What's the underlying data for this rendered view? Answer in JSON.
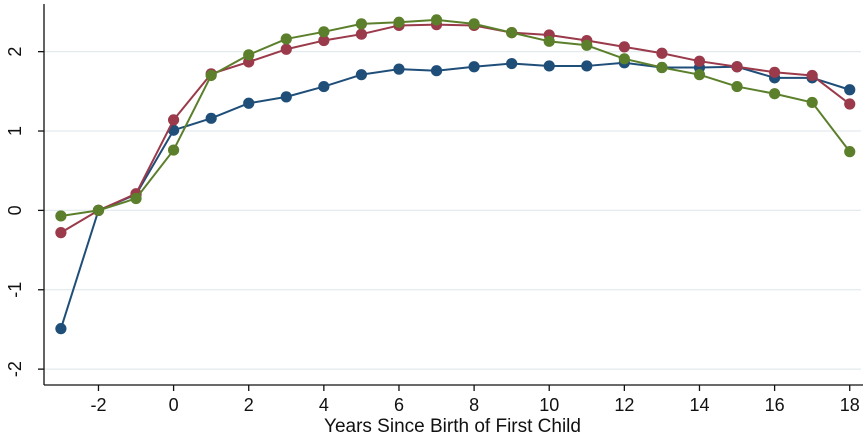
{
  "chart_data": {
    "type": "line",
    "xlabel": "Years Since Birth of First Child",
    "ylabel": "",
    "x": [
      -3,
      -2,
      -1,
      0,
      1,
      2,
      3,
      4,
      5,
      6,
      7,
      8,
      9,
      10,
      11,
      12,
      13,
      14,
      15,
      16,
      17,
      18
    ],
    "xlim": [
      -3.45,
      18.3
    ],
    "ylim": [
      -2.2,
      2.55
    ],
    "xticks": [
      -2,
      0,
      2,
      4,
      6,
      8,
      10,
      12,
      14,
      16,
      18
    ],
    "xtick_labels": [
      "-2",
      "0",
      "2",
      "4",
      "6",
      "8",
      "10",
      "12",
      "14",
      "16",
      "18"
    ],
    "yticks": [
      -2,
      -1,
      0,
      1,
      2
    ],
    "ytick_labels": [
      "-2",
      "-1",
      "0",
      "1",
      "2"
    ],
    "grid": "horizontal",
    "legend": "none",
    "series": [
      {
        "color": "#1f4e79",
        "values": [
          -1.49,
          0.0,
          0.2,
          1.01,
          1.16,
          1.35,
          1.43,
          1.56,
          1.71,
          1.78,
          1.76,
          1.81,
          1.85,
          1.82,
          1.82,
          1.86,
          1.8,
          1.8,
          1.81,
          1.67,
          1.67,
          1.52
        ]
      },
      {
        "color": "#9a3a4a",
        "values": [
          -0.28,
          0.0,
          0.21,
          1.14,
          1.72,
          1.87,
          2.03,
          2.14,
          2.22,
          2.33,
          2.34,
          2.33,
          2.24,
          2.21,
          2.14,
          2.06,
          1.98,
          1.88,
          1.81,
          1.74,
          1.7,
          1.34
        ]
      },
      {
        "color": "#5b7f2b",
        "values": [
          -0.07,
          0.0,
          0.15,
          0.76,
          1.7,
          1.96,
          2.16,
          2.25,
          2.35,
          2.37,
          2.4,
          2.35,
          2.24,
          2.13,
          2.08,
          1.91,
          1.8,
          1.71,
          1.56,
          1.47,
          1.36,
          0.74
        ]
      }
    ]
  }
}
